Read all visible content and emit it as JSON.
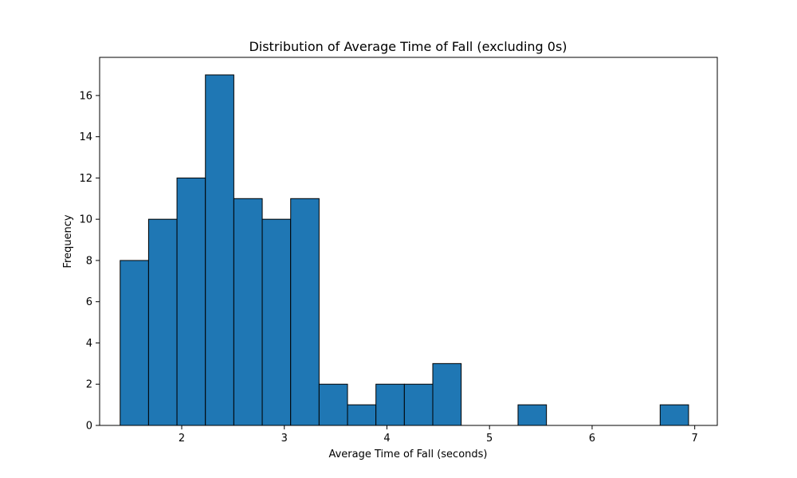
{
  "chart_data": {
    "type": "bar",
    "title": "Distribution of Average Time of Fall (excluding 0s)",
    "xlabel": "Average Time of Fall (seconds)",
    "ylabel": "Frequency",
    "xlim": [
      1.2,
      7.22
    ],
    "ylim": [
      0,
      17.85
    ],
    "xticks": [
      2,
      3,
      4,
      5,
      6,
      7
    ],
    "yticks": [
      0,
      2,
      4,
      6,
      8,
      10,
      12,
      14,
      16
    ],
    "bin_width": 0.277,
    "bins_start": [
      1.4,
      1.677,
      1.954,
      2.231,
      2.508,
      2.785,
      3.062,
      3.339,
      3.616,
      3.893,
      4.17,
      4.447,
      4.724,
      5.001,
      5.278,
      5.555,
      5.832,
      6.109,
      6.386,
      6.663
    ],
    "values": [
      8,
      10,
      12,
      17,
      11,
      10,
      11,
      2,
      1,
      2,
      2,
      3,
      0,
      0,
      1,
      0,
      0,
      0,
      0,
      1
    ],
    "colors": {
      "bar_fill": "#1f77b4",
      "bar_edge": "#000000",
      "axis": "#000000"
    },
    "grid": false
  }
}
